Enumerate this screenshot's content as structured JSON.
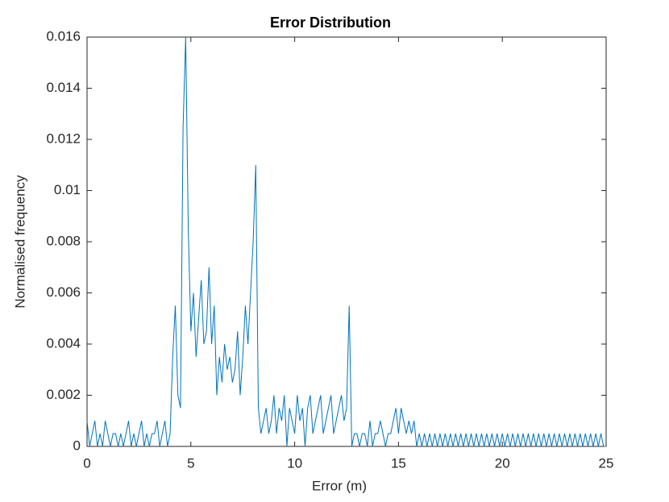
{
  "chart_data": {
    "type": "line",
    "title": "Error Distribution",
    "xlabel": "Error (m)",
    "ylabel": "Normalised frequency",
    "color": "#0072bd",
    "x": [
      0,
      0.125,
      0.25,
      0.375,
      0.5,
      0.625,
      0.75,
      0.875,
      1,
      1.125,
      1.25,
      1.375,
      1.5,
      1.625,
      1.75,
      1.875,
      2,
      2.125,
      2.25,
      2.375,
      2.5,
      2.625,
      2.75,
      2.875,
      3,
      3.125,
      3.25,
      3.375,
      3.5,
      3.625,
      3.75,
      3.875,
      4,
      4.125,
      4.25,
      4.375,
      4.5,
      4.625,
      4.75,
      4.875,
      5,
      5.125,
      5.25,
      5.375,
      5.5,
      5.625,
      5.75,
      5.875,
      6,
      6.125,
      6.25,
      6.375,
      6.5,
      6.625,
      6.75,
      6.875,
      7,
      7.125,
      7.25,
      7.375,
      7.5,
      7.625,
      7.75,
      7.875,
      8,
      8.125,
      8.25,
      8.375,
      8.5,
      8.625,
      8.75,
      8.875,
      9,
      9.125,
      9.25,
      9.375,
      9.5,
      9.625,
      9.75,
      9.875,
      10,
      10.125,
      10.25,
      10.375,
      10.5,
      10.625,
      10.75,
      10.875,
      11,
      11.125,
      11.25,
      11.375,
      11.5,
      11.625,
      11.75,
      11.875,
      12,
      12.125,
      12.25,
      12.375,
      12.5,
      12.625,
      12.75,
      12.875,
      13,
      13.125,
      13.25,
      13.375,
      13.5,
      13.625,
      13.75,
      13.875,
      14,
      14.125,
      14.25,
      14.375,
      14.5,
      14.625,
      14.75,
      14.875,
      15,
      15.125,
      15.25,
      15.375,
      15.5,
      15.625,
      15.75,
      15.875,
      16,
      16.125,
      16.25,
      16.375,
      16.5,
      16.625,
      16.75,
      16.875,
      17,
      17.125,
      17.25,
      17.375,
      17.5,
      17.625,
      17.75,
      17.875,
      18,
      18.125,
      18.25,
      18.375,
      18.5,
      18.625,
      18.75,
      18.875,
      19,
      19.125,
      19.25,
      19.375,
      19.5,
      19.625,
      19.75,
      19.875,
      20,
      20.125,
      20.25,
      20.375,
      20.5,
      20.625,
      20.75,
      20.875,
      21,
      21.125,
      21.25,
      21.375,
      21.5,
      21.625,
      21.75,
      21.875,
      22,
      22.125,
      22.25,
      22.375,
      22.5,
      22.625,
      22.75,
      22.875,
      23,
      23.125,
      23.25,
      23.375,
      23.5,
      23.625,
      23.75,
      23.875,
      24,
      24.125,
      24.25,
      24.375,
      24.5,
      24.625,
      24.75,
      24.875,
      25
    ],
    "values": [
      0.001,
      0,
      0.0005,
      0.001,
      0,
      0.0005,
      0,
      0.001,
      0.0005,
      0,
      0.0005,
      0.0005,
      0,
      0.0005,
      0,
      0.0005,
      0.001,
      0,
      0.0005,
      0,
      0.0005,
      0.001,
      0,
      0.0005,
      0,
      0.0005,
      0.0005,
      0.001,
      0,
      0.0005,
      0.001,
      0,
      0.0005,
      0.0035,
      0.0055,
      0.002,
      0.0015,
      0.0125,
      0.016,
      0.0085,
      0.0045,
      0.006,
      0.0035,
      0.005,
      0.0065,
      0.004,
      0.0045,
      0.007,
      0.004,
      0.0055,
      0.002,
      0.0035,
      0.0025,
      0.004,
      0.003,
      0.0035,
      0.0025,
      0.003,
      0.0045,
      0.002,
      0.0035,
      0.0055,
      0.004,
      0.006,
      0.008,
      0.011,
      0.0015,
      0.0005,
      0.001,
      0.0015,
      0.0005,
      0.001,
      0.002,
      0.0005,
      0.0015,
      0.001,
      0.002,
      0,
      0.0015,
      0.001,
      0.0005,
      0.002,
      0.001,
      0.0015,
      0,
      0.0015,
      0.002,
      0.0005,
      0.001,
      0.0015,
      0.002,
      0.0005,
      0.001,
      0.0015,
      0.002,
      0.0005,
      0.001,
      0.0015,
      0.002,
      0.001,
      0.0015,
      0.0055,
      0,
      0.0005,
      0.0005,
      0,
      0.0005,
      0.0005,
      0,
      0.001,
      0,
      0.0005,
      0.0005,
      0.001,
      0.0005,
      0,
      0.0005,
      0.0005,
      0.001,
      0.0015,
      0.0005,
      0.0015,
      0.001,
      0.0005,
      0.001,
      0.0005,
      0.001,
      0,
      0.0005,
      0,
      0.0005,
      0,
      0.0005,
      0,
      0.0005,
      0,
      0.0005,
      0,
      0.0005,
      0,
      0.0005,
      0,
      0.0005,
      0,
      0.0005,
      0,
      0.0005,
      0,
      0.0005,
      0,
      0.0005,
      0,
      0.0005,
      0,
      0.0005,
      0,
      0.0005,
      0,
      0.0005,
      0,
      0.0005,
      0,
      0.0005,
      0,
      0.0005,
      0,
      0.0005,
      0,
      0.0005,
      0,
      0.0005,
      0,
      0.0005,
      0,
      0.0005,
      0,
      0.0005,
      0,
      0.0005,
      0,
      0.0005,
      0,
      0.0005,
      0,
      0.0005,
      0,
      0.0005,
      0,
      0.0005,
      0,
      0.0005,
      0,
      0.0005,
      0,
      0.0005,
      0,
      0.0005,
      0,
      0.0005,
      0,
      0
    ],
    "xlim": [
      0,
      25
    ],
    "xticks": [
      0,
      5,
      10,
      15,
      20,
      25
    ],
    "ylim": [
      0,
      0.016
    ],
    "yticks": [
      0,
      0.002,
      0.004,
      0.006,
      0.008,
      0.01,
      0.012,
      0.014,
      0.016
    ]
  }
}
